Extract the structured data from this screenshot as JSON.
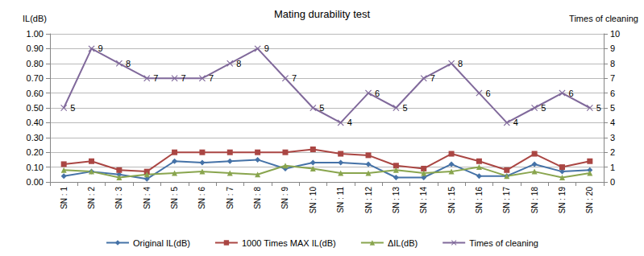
{
  "chart_data": {
    "type": "line",
    "title": "Mating durability test",
    "y_label": "IL(dB)",
    "y2_label": "Times of cleaning",
    "categories": [
      "SN : 1",
      "SN : 2",
      "SN : 3",
      "SN : 4",
      "SN : 5",
      "SN : 6",
      "SN : 7",
      "SN : 8",
      "SN : 9",
      "SN : 10",
      "SN : 11",
      "SN : 12",
      "SN : 13",
      "SN : 14",
      "SN : 15",
      "SN : 16",
      "SN : 17",
      "SN : 18",
      "SN : 19",
      "SN : 20"
    ],
    "ylim": [
      0,
      1
    ],
    "yticks": [
      {
        "value": 0,
        "label": "0.00"
      },
      {
        "value": 0.1,
        "label": "0.10"
      },
      {
        "value": 0.2,
        "label": "0.20"
      },
      {
        "value": 0.3,
        "label": "0.30"
      },
      {
        "value": 0.4,
        "label": "0.40"
      },
      {
        "value": 0.5,
        "label": "0.50"
      },
      {
        "value": 0.6,
        "label": "0.60"
      },
      {
        "value": 0.7,
        "label": "0.70"
      },
      {
        "value": 0.8,
        "label": "0.80"
      },
      {
        "value": 0.9,
        "label": "0.90"
      },
      {
        "value": 1,
        "label": "1.00"
      }
    ],
    "y2lim": [
      0,
      10
    ],
    "y2ticks": [
      0,
      1,
      2,
      3,
      4,
      5,
      6,
      7,
      8,
      9,
      10
    ],
    "grid": true,
    "legend": "bottom",
    "series": [
      {
        "name": "Original IL(dB)",
        "color": "#4572A7",
        "marker": "diamond",
        "values": [
          0.04,
          0.07,
          0.05,
          0.02,
          0.14,
          0.13,
          0.14,
          0.15,
          0.09,
          0.13,
          0.13,
          0.12,
          0.03,
          0.03,
          0.12,
          0.04,
          0.04,
          0.12,
          0.07,
          0.08
        ]
      },
      {
        "name": "1000 Times MAX IL(dB)",
        "color": "#AA4643",
        "marker": "square",
        "values": [
          0.12,
          0.14,
          0.08,
          0.07,
          0.2,
          0.2,
          0.2,
          0.2,
          0.2,
          0.22,
          0.19,
          0.18,
          0.11,
          0.09,
          0.19,
          0.14,
          0.08,
          0.19,
          0.1,
          0.14
        ]
      },
      {
        "name": "ΔIL(dB)",
        "color": "#89A54E",
        "marker": "triangle",
        "values": [
          0.08,
          0.07,
          0.03,
          0.05,
          0.06,
          0.07,
          0.06,
          0.05,
          0.11,
          0.09,
          0.06,
          0.06,
          0.08,
          0.06,
          0.07,
          0.1,
          0.04,
          0.07,
          0.03,
          0.06
        ]
      },
      {
        "name": "Times of cleaning",
        "color": "#80699B",
        "marker": "x",
        "axis": "y2",
        "data_labels": true,
        "values": [
          5,
          9,
          8,
          7,
          7,
          7,
          8,
          9,
          7,
          5,
          4,
          6,
          5,
          7,
          8,
          6,
          4,
          5,
          6,
          5
        ]
      }
    ]
  }
}
